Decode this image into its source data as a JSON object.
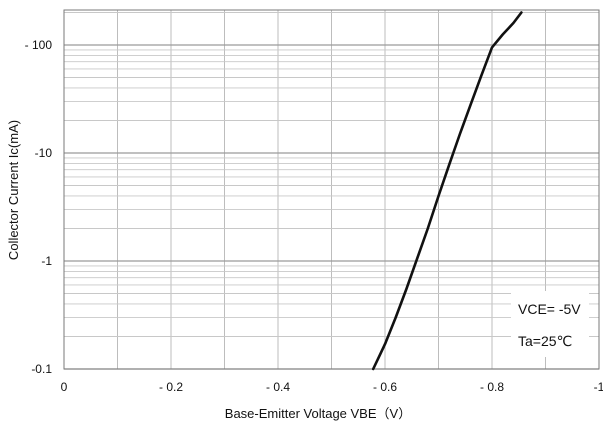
{
  "chart_data": {
    "type": "line",
    "x_axis": {
      "label": "Base-Emitter Voltage  VBE（V）",
      "range": [
        0,
        -1
      ],
      "ticks": [
        0,
        -0.1,
        -0.2,
        -0.3,
        -0.4,
        -0.5,
        -0.6,
        -0.7,
        -0.8,
        -0.9,
        -1.0
      ],
      "tick_labels": [
        "0",
        "- 0.2",
        "- 0.4",
        "- 0.6",
        "- 0.8",
        "-1"
      ],
      "tick_label_values": [
        0,
        -0.2,
        -0.4,
        -0.6,
        -0.8,
        -1.0
      ]
    },
    "y_axis": {
      "label": "Collector Current   Ic(mA)",
      "scale": "log",
      "range": [
        -0.1,
        -200
      ],
      "tick_labels": [
        "- 100",
        "-10",
        "-1",
        "-0.1"
      ],
      "tick_label_values": [
        -100,
        -10,
        -1,
        -0.1
      ]
    },
    "grid": true,
    "series": [
      {
        "x": [
          -0.578,
          -0.6,
          -0.62,
          -0.64,
          -0.66,
          -0.68,
          -0.7,
          -0.72,
          -0.74,
          -0.76,
          -0.78,
          -0.8,
          -0.82,
          -0.84,
          -0.855
        ],
        "y": [
          -0.1,
          -0.17,
          -0.3,
          -0.55,
          -1.05,
          -2.0,
          -4.0,
          -7.8,
          -15,
          -28,
          -52,
          -95,
          -125,
          -160,
          -200
        ]
      }
    ],
    "annotations": [
      {
        "text": "VCE= -5V"
      },
      {
        "text": "Ta=25℃"
      }
    ]
  }
}
